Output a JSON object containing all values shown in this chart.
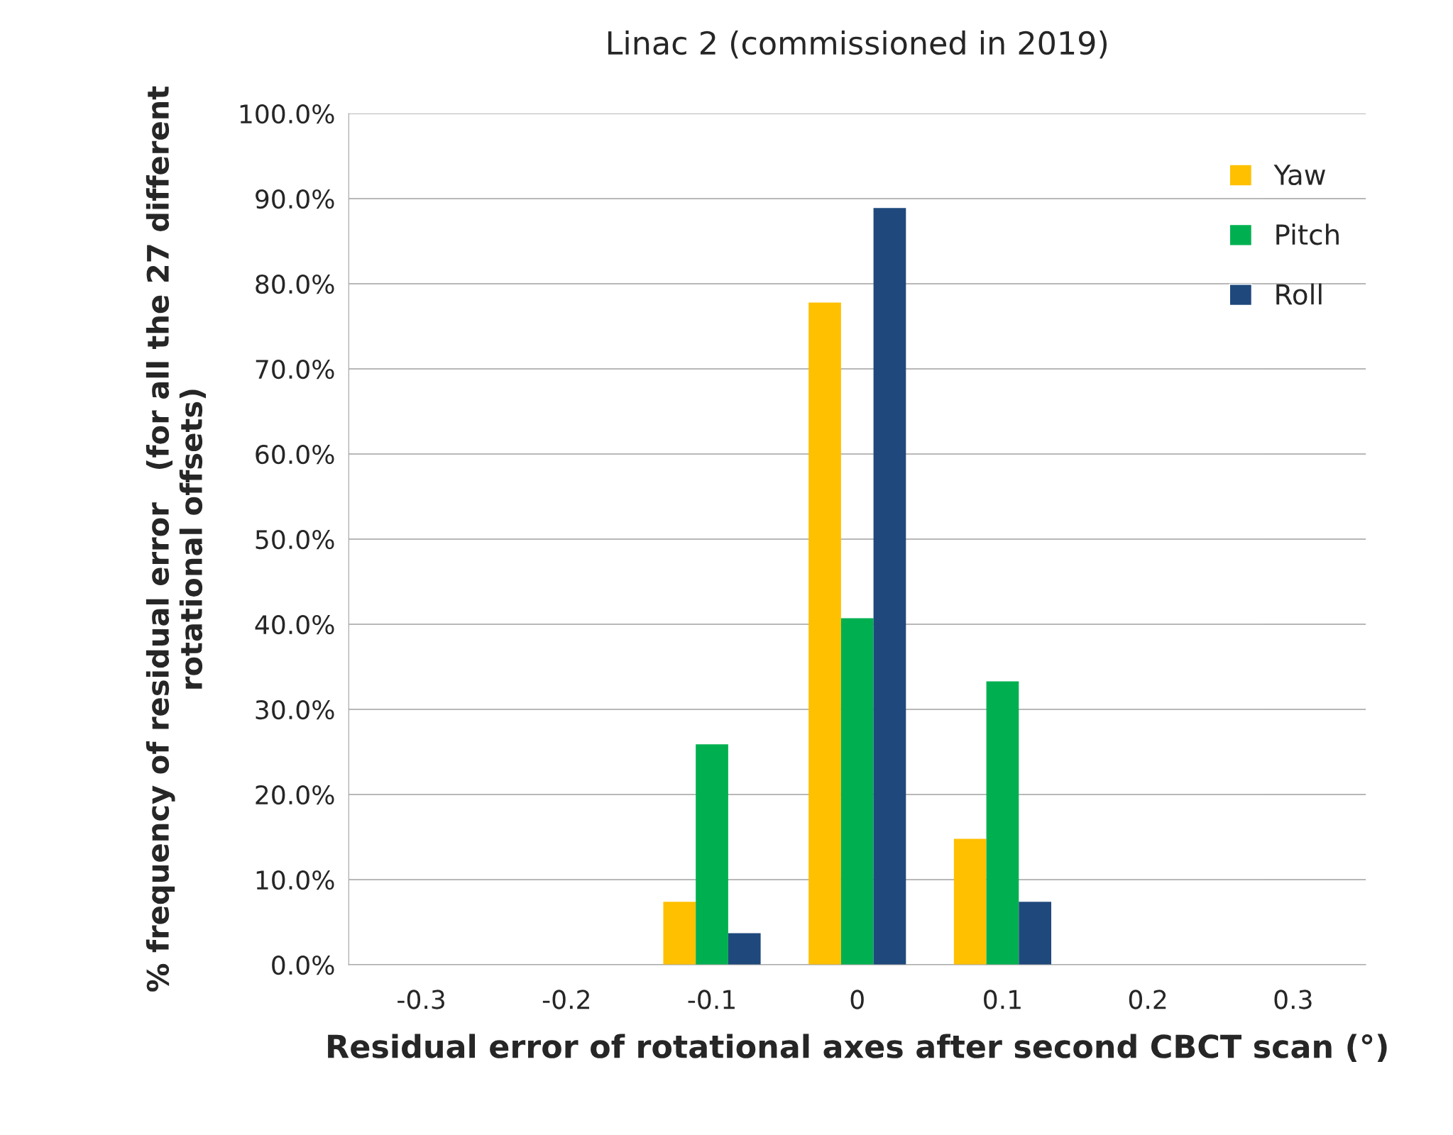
{
  "chart_data": {
    "type": "bar",
    "title": "Linac 2 (commissioned in 2019)",
    "xlabel": "Residual error of rotational axes after second CBCT scan (°)",
    "ylabel": "% frequency of residual error   (for all the 27 different rotational offsets)",
    "categories": [
      "-0.3",
      "-0.2",
      "-0.1",
      "0",
      "0.1",
      "0.2",
      "0.3"
    ],
    "series": [
      {
        "name": "Yaw",
        "color": "#ffc000",
        "values": [
          0,
          0,
          7.4,
          77.8,
          14.8,
          0,
          0
        ]
      },
      {
        "name": "Pitch",
        "color": "#00b050",
        "values": [
          0,
          0,
          25.9,
          40.7,
          33.3,
          0,
          0
        ]
      },
      {
        "name": "Roll",
        "color": "#1f497d",
        "values": [
          0,
          0,
          3.7,
          88.9,
          7.4,
          0,
          0
        ]
      }
    ],
    "ylim": [
      0,
      100
    ],
    "yticks": [
      {
        "value": 0,
        "label": "0.0%"
      },
      {
        "value": 10,
        "label": "10.0%"
      },
      {
        "value": 20,
        "label": "20.0%"
      },
      {
        "value": 30,
        "label": "30.0%"
      },
      {
        "value": 40,
        "label": "40.0%"
      },
      {
        "value": 50,
        "label": "50.0%"
      },
      {
        "value": 60,
        "label": "60.0%"
      },
      {
        "value": 70,
        "label": "70.0%"
      },
      {
        "value": 80,
        "label": "80.0%"
      },
      {
        "value": 90,
        "label": "90.0%"
      },
      {
        "value": 100,
        "label": "100.0%"
      }
    ],
    "grid": "y",
    "legend": "top right"
  }
}
